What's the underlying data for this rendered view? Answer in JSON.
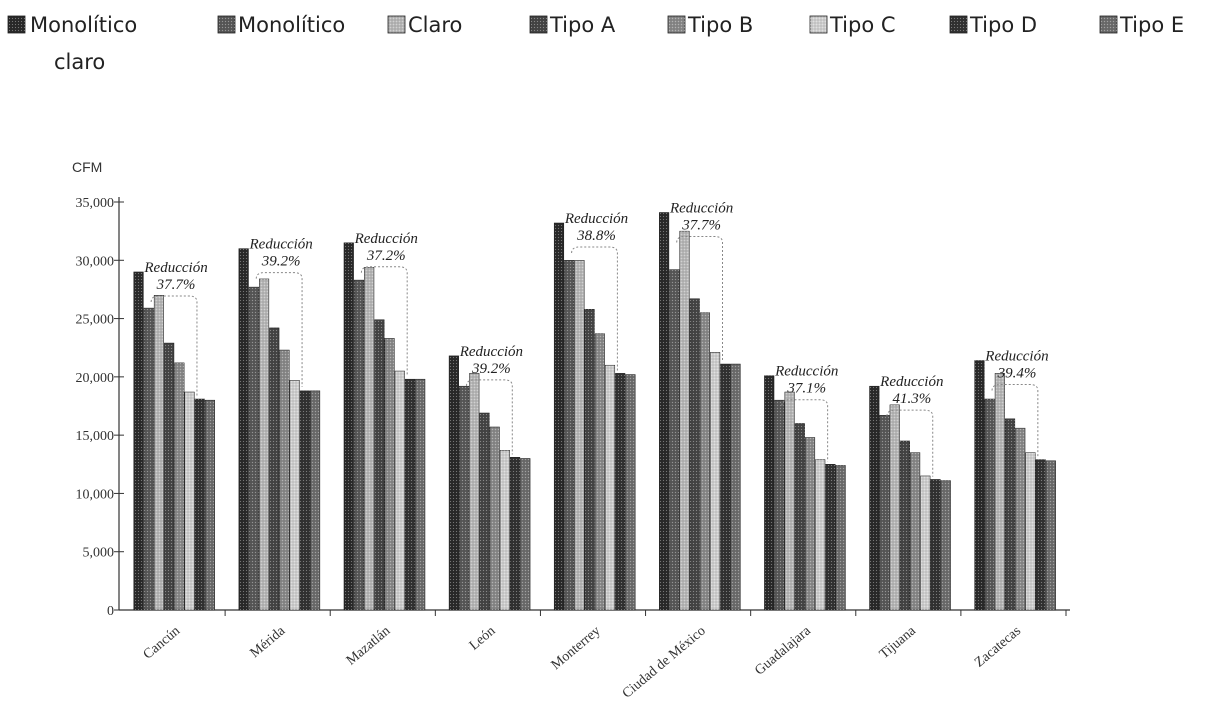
{
  "chart_data": {
    "type": "bar",
    "title": "",
    "xlabel": "",
    "ylabel": "CFM",
    "ylim": [
      0,
      35000
    ],
    "yticks": [
      0,
      5000,
      10000,
      15000,
      20000,
      25000,
      30000,
      35000
    ],
    "ytick_labels": [
      "0",
      "5,000",
      "10,000",
      "15,000",
      "20,000",
      "25,000",
      "30,000",
      "35,000"
    ],
    "categories": [
      "Cancún",
      "Mérida",
      "Mazatlán",
      "León",
      "Monterrey",
      "Ciudad de México",
      "Guadalajara",
      "Tijuana",
      "Zacatecas"
    ],
    "legend_position": "top",
    "series": [
      {
        "name": "Monolítico claro",
        "color": "#2b2b2b",
        "values": [
          29000,
          31000,
          31500,
          21800,
          33200,
          34100,
          20100,
          19200,
          21400
        ]
      },
      {
        "name": "Monolítico",
        "color": "#5a5a5a",
        "values": [
          25900,
          27700,
          28300,
          19200,
          30000,
          29200,
          18000,
          16700,
          18100
        ]
      },
      {
        "name": "Claro",
        "color": "#b8b8b8",
        "values": [
          27000,
          28400,
          29400,
          20300,
          30000,
          32500,
          18700,
          17600,
          20300
        ]
      },
      {
        "name": "Tipo A",
        "color": "#464646",
        "values": [
          22900,
          24200,
          24900,
          16900,
          25800,
          26700,
          16000,
          14500,
          16400
        ]
      },
      {
        "name": "Tipo B",
        "color": "#8a8a8a",
        "values": [
          21200,
          22300,
          23300,
          15700,
          23700,
          25500,
          14800,
          13500,
          15600
        ]
      },
      {
        "name": "Tipo C",
        "color": "#cfcfcf",
        "values": [
          18700,
          19700,
          20500,
          13700,
          21000,
          22100,
          12900,
          11500,
          13500
        ]
      },
      {
        "name": "Tipo D",
        "color": "#333333",
        "values": [
          18100,
          18800,
          19800,
          13100,
          20300,
          21100,
          12500,
          11200,
          12900
        ]
      },
      {
        "name": "Tipo E",
        "color": "#6e6e6e",
        "values": [
          18000,
          18800,
          19800,
          13000,
          20200,
          21100,
          12400,
          11100,
          12800
        ]
      }
    ],
    "annotations": [
      {
        "category": "Cancún",
        "label": "Reducción",
        "value": "37.7%"
      },
      {
        "category": "Mérida",
        "label": "Reducción",
        "value": "39.2%"
      },
      {
        "category": "Mazatlán",
        "label": "Reducción",
        "value": "37.2%"
      },
      {
        "category": "León",
        "label": "Reducción",
        "value": "39.2%"
      },
      {
        "category": "Monterrey",
        "label": "Reducción",
        "value": "38.8%"
      },
      {
        "category": "Ciudad de México",
        "label": "Reducción",
        "value": "37.7%"
      },
      {
        "category": "Guadalajara",
        "label": "Reducción",
        "value": "37.1%"
      },
      {
        "category": "Tijuana",
        "label": "Reducción",
        "value": "41.3%"
      },
      {
        "category": "Zacatecas",
        "label": "Reducción",
        "value": "39.4%"
      }
    ]
  }
}
